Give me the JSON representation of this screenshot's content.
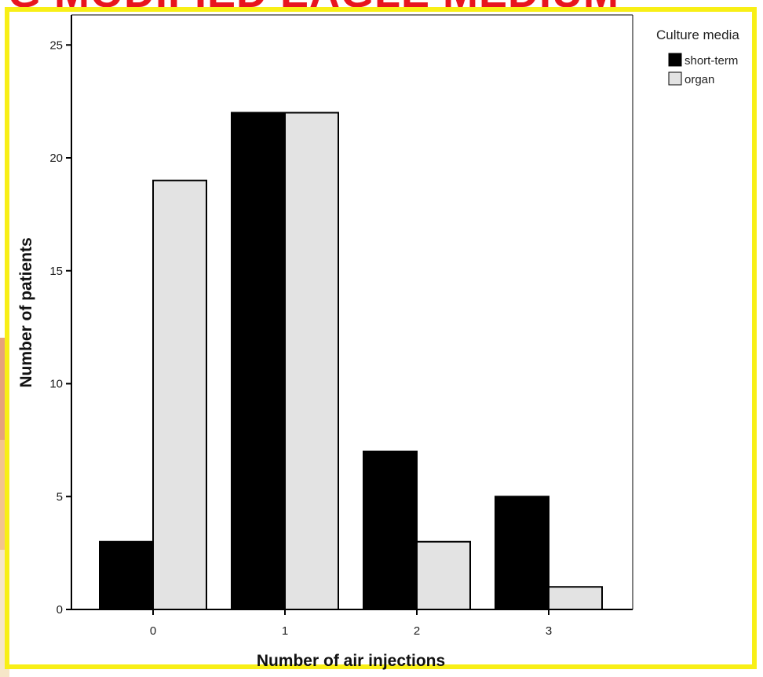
{
  "slide": {
    "title_fragment": "G MODIFIED EAGLE MEDIUM"
  },
  "colors": {
    "frame": "#f8ef16",
    "slide_title": "#e8141e",
    "series_short_term": "#000000",
    "series_organ": "#e3e3e3",
    "bar_stroke": "#000000"
  },
  "chart_data": {
    "type": "bar",
    "categories": [
      "0",
      "1",
      "2",
      "3"
    ],
    "series": [
      {
        "name": "short-term",
        "values": [
          3,
          22,
          7,
          5
        ]
      },
      {
        "name": "organ",
        "values": [
          19,
          22,
          3,
          1
        ]
      }
    ],
    "xlabel": "Number of air injections",
    "ylabel": "Number of patients",
    "ylim": [
      0,
      26
    ],
    "yticks": [
      "0",
      "5",
      "10",
      "15",
      "20",
      "25"
    ],
    "grid": false,
    "legend": {
      "title": "Culture media",
      "placement": "top-right",
      "entries": [
        "short-term",
        "organ"
      ]
    }
  }
}
